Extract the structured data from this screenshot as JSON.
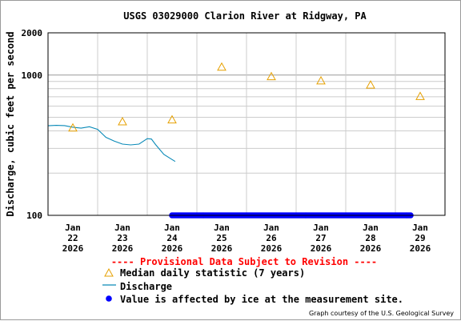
{
  "chart_data": {
    "type": "line",
    "title": "USGS 03029000 Clarion River at Ridgway, PA",
    "ylabel": "Discharge, cubic feet per second",
    "xlabel": "",
    "yscale": "log",
    "ylim": [
      100,
      2000
    ],
    "ytick_labels": [
      "2000",
      "1000",
      "100"
    ],
    "xlim": [
      "2026-01-21 12:00",
      "2026-01-29 12:00"
    ],
    "x_ticks": [
      {
        "x": "2026-01-22",
        "label": [
          "Jan",
          "22",
          "2026"
        ]
      },
      {
        "x": "2026-01-23",
        "label": [
          "Jan",
          "23",
          "2026"
        ]
      },
      {
        "x": "2026-01-24",
        "label": [
          "Jan",
          "24",
          "2026"
        ]
      },
      {
        "x": "2026-01-25",
        "label": [
          "Jan",
          "25",
          "2026"
        ]
      },
      {
        "x": "2026-01-26",
        "label": [
          "Jan",
          "26",
          "2026"
        ]
      },
      {
        "x": "2026-01-27",
        "label": [
          "Jan",
          "27",
          "2026"
        ]
      },
      {
        "x": "2026-01-28",
        "label": [
          "Jan",
          "28",
          "2026"
        ]
      },
      {
        "x": "2026-01-29",
        "label": [
          "Jan",
          "29",
          "2026"
        ]
      }
    ],
    "grid": true,
    "legend_position": "bottom",
    "series": [
      {
        "name": "Median daily statistic (7 years)",
        "kind": "triangle-markers",
        "color": "#e6a000",
        "points": [
          {
            "x": "2026-01-22 00:00",
            "y": 420
          },
          {
            "x": "2026-01-23 00:00",
            "y": 465
          },
          {
            "x": "2026-01-24 00:00",
            "y": 480
          },
          {
            "x": "2026-01-25 00:00",
            "y": 1140
          },
          {
            "x": "2026-01-26 00:00",
            "y": 975
          },
          {
            "x": "2026-01-27 00:00",
            "y": 910
          },
          {
            "x": "2026-01-28 00:00",
            "y": 850
          },
          {
            "x": "2026-01-29 00:00",
            "y": 705
          }
        ]
      },
      {
        "name": "Discharge",
        "kind": "line",
        "color": "#0a8ab8",
        "points": [
          {
            "x": "2026-01-21 12:00",
            "y": 435
          },
          {
            "x": "2026-01-21 16:00",
            "y": 438
          },
          {
            "x": "2026-01-21 20:00",
            "y": 436
          },
          {
            "x": "2026-01-22 00:00",
            "y": 425
          },
          {
            "x": "2026-01-22 04:00",
            "y": 418
          },
          {
            "x": "2026-01-22 08:00",
            "y": 428
          },
          {
            "x": "2026-01-22 12:00",
            "y": 410
          },
          {
            "x": "2026-01-22 16:00",
            "y": 360
          },
          {
            "x": "2026-01-22 20:00",
            "y": 338
          },
          {
            "x": "2026-01-23 00:00",
            "y": 322
          },
          {
            "x": "2026-01-23 04:00",
            "y": 318
          },
          {
            "x": "2026-01-23 08:00",
            "y": 322
          },
          {
            "x": "2026-01-23 12:00",
            "y": 352
          },
          {
            "x": "2026-01-23 14:00",
            "y": 350
          },
          {
            "x": "2026-01-23 16:00",
            "y": 320
          },
          {
            "x": "2026-01-23 20:00",
            "y": 272
          },
          {
            "x": "2026-01-24 00:00",
            "y": 250
          },
          {
            "x": "2026-01-24 01:30",
            "y": 242
          }
        ]
      },
      {
        "name": "Value is affected by ice at the measurement site.",
        "kind": "dot-band",
        "color": "#0000ff",
        "y": 100,
        "x_start": "2026-01-24 00:00",
        "x_end": "2026-01-28 20:00"
      }
    ]
  },
  "provisional_notice": "---- Provisional Data Subject to Revision ----",
  "legend": {
    "median_label": "Median daily statistic (7 years)",
    "discharge_label": "Discharge",
    "ice_label": "Value is affected by ice at the measurement site."
  },
  "credit": "Graph courtesy of the U.S. Geological Survey",
  "colors": {
    "median": "#e6a000",
    "discharge": "#0a8ab8",
    "ice": "#0000ff",
    "provisional": "#ff0000",
    "grid": "#cccccc"
  }
}
